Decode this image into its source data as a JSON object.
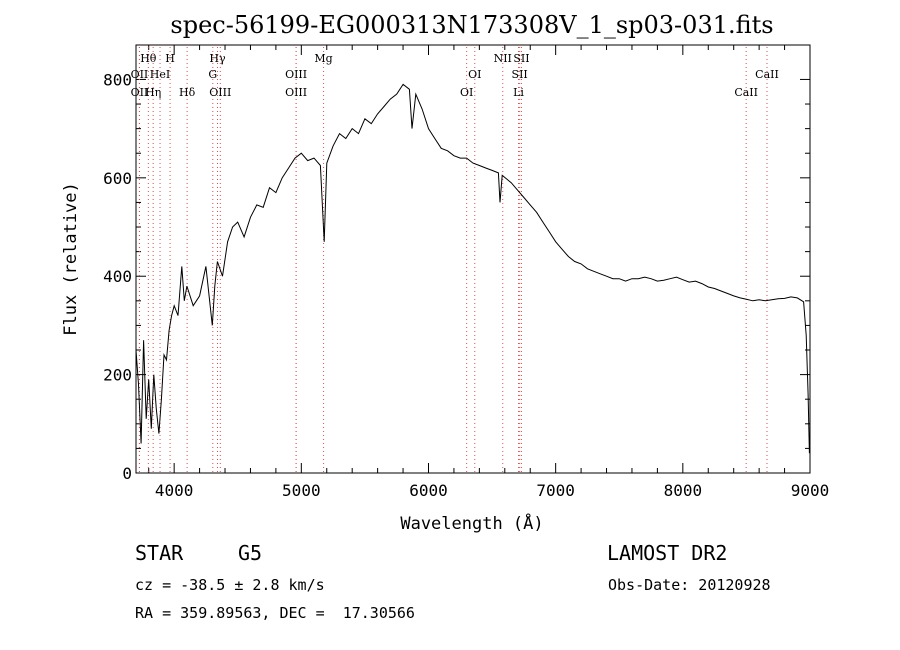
{
  "chart_data": {
    "type": "line",
    "title": "spec-56199-EG000313N173308V_1_sp03-031.fits",
    "xlabel": "Wavelength (Å)",
    "ylabel": "Flux (relative)",
    "xlim": [
      3700,
      9000
    ],
    "ylim": [
      0,
      870
    ],
    "grid": false,
    "x_ticks": [
      4000,
      5000,
      6000,
      7000,
      8000,
      9000
    ],
    "y_ticks": [
      0,
      200,
      400,
      600,
      800
    ],
    "series": [
      {
        "color": "#000000",
        "points": [
          [
            3700,
            250
          ],
          [
            3720,
            180
          ],
          [
            3740,
            60
          ],
          [
            3760,
            270
          ],
          [
            3780,
            110
          ],
          [
            3800,
            190
          ],
          [
            3820,
            90
          ],
          [
            3840,
            200
          ],
          [
            3860,
            130
          ],
          [
            3880,
            80
          ],
          [
            3900,
            150
          ],
          [
            3920,
            240
          ],
          [
            3940,
            230
          ],
          [
            3960,
            290
          ],
          [
            3980,
            320
          ],
          [
            4000,
            340
          ],
          [
            4030,
            320
          ],
          [
            4060,
            420
          ],
          [
            4080,
            350
          ],
          [
            4100,
            380
          ],
          [
            4150,
            340
          ],
          [
            4200,
            360
          ],
          [
            4250,
            420
          ],
          [
            4300,
            300
          ],
          [
            4320,
            380
          ],
          [
            4340,
            430
          ],
          [
            4380,
            400
          ],
          [
            4420,
            470
          ],
          [
            4460,
            500
          ],
          [
            4500,
            510
          ],
          [
            4550,
            480
          ],
          [
            4600,
            520
          ],
          [
            4650,
            545
          ],
          [
            4700,
            540
          ],
          [
            4750,
            580
          ],
          [
            4800,
            570
          ],
          [
            4850,
            600
          ],
          [
            4900,
            620
          ],
          [
            4950,
            640
          ],
          [
            5000,
            650
          ],
          [
            5050,
            635
          ],
          [
            5100,
            640
          ],
          [
            5150,
            625
          ],
          [
            5180,
            470
          ],
          [
            5200,
            630
          ],
          [
            5250,
            665
          ],
          [
            5300,
            690
          ],
          [
            5350,
            680
          ],
          [
            5400,
            700
          ],
          [
            5450,
            690
          ],
          [
            5500,
            720
          ],
          [
            5550,
            710
          ],
          [
            5600,
            730
          ],
          [
            5650,
            745
          ],
          [
            5700,
            760
          ],
          [
            5750,
            770
          ],
          [
            5800,
            790
          ],
          [
            5850,
            780
          ],
          [
            5870,
            700
          ],
          [
            5900,
            770
          ],
          [
            5950,
            740
          ],
          [
            6000,
            700
          ],
          [
            6050,
            680
          ],
          [
            6100,
            660
          ],
          [
            6150,
            655
          ],
          [
            6200,
            645
          ],
          [
            6250,
            640
          ],
          [
            6300,
            640
          ],
          [
            6350,
            630
          ],
          [
            6400,
            625
          ],
          [
            6450,
            620
          ],
          [
            6500,
            615
          ],
          [
            6550,
            610
          ],
          [
            6562,
            550
          ],
          [
            6580,
            605
          ],
          [
            6650,
            590
          ],
          [
            6700,
            575
          ],
          [
            6750,
            560
          ],
          [
            6800,
            545
          ],
          [
            6850,
            530
          ],
          [
            6900,
            510
          ],
          [
            6950,
            490
          ],
          [
            7000,
            470
          ],
          [
            7050,
            455
          ],
          [
            7100,
            440
          ],
          [
            7150,
            430
          ],
          [
            7200,
            425
          ],
          [
            7250,
            415
          ],
          [
            7300,
            410
          ],
          [
            7350,
            405
          ],
          [
            7400,
            400
          ],
          [
            7450,
            395
          ],
          [
            7500,
            395
          ],
          [
            7550,
            390
          ],
          [
            7600,
            395
          ],
          [
            7650,
            395
          ],
          [
            7700,
            398
          ],
          [
            7750,
            395
          ],
          [
            7800,
            390
          ],
          [
            7850,
            392
          ],
          [
            7900,
            395
          ],
          [
            7950,
            398
          ],
          [
            8000,
            393
          ],
          [
            8050,
            388
          ],
          [
            8100,
            390
          ],
          [
            8150,
            385
          ],
          [
            8200,
            378
          ],
          [
            8250,
            375
          ],
          [
            8300,
            370
          ],
          [
            8350,
            365
          ],
          [
            8400,
            360
          ],
          [
            8450,
            356
          ],
          [
            8500,
            353
          ],
          [
            8550,
            350
          ],
          [
            8600,
            352
          ],
          [
            8650,
            350
          ],
          [
            8700,
            352
          ],
          [
            8750,
            354
          ],
          [
            8800,
            355
          ],
          [
            8850,
            358
          ],
          [
            8900,
            356
          ],
          [
            8950,
            348
          ],
          [
            8970,
            280
          ],
          [
            8985,
            160
          ],
          [
            8995,
            40
          ]
        ]
      }
    ],
    "lines_bottom": [
      {
        "label": "OII",
        "x": 3727
      },
      {
        "label": "Hη",
        "x": 3835
      },
      {
        "label": "Hδ",
        "x": 4102
      },
      {
        "label": "OIII",
        "x": 4363
      },
      {
        "label": "OIII",
        "x": 4959
      },
      {
        "label": "OI",
        "x": 6300
      },
      {
        "label": "Li",
        "x": 6708
      },
      {
        "label": "CaII",
        "x": 8498
      }
    ],
    "lines_middle": [
      {
        "label": "OII",
        "x": 3727
      },
      {
        "label": "HeI",
        "x": 3889
      },
      {
        "label": "G",
        "x": 4304
      },
      {
        "label": "OIII",
        "x": 4959
      },
      {
        "label": "OI",
        "x": 6364
      },
      {
        "label": "SII",
        "x": 6717
      },
      {
        "label": "CaII",
        "x": 8662
      }
    ],
    "lines_top": [
      {
        "label": "Hθ",
        "x": 3797
      },
      {
        "label": "H",
        "x": 3968
      },
      {
        "label": "Hγ",
        "x": 4341
      },
      {
        "label": "Mg",
        "x": 5175
      },
      {
        "label": "NII",
        "x": 6584
      },
      {
        "label": "SII",
        "x": 6731
      }
    ],
    "line_marker_color": "#e05050"
  },
  "info": {
    "class": "STAR",
    "subclass": "G5",
    "survey": "LAMOST DR2",
    "redshift": "cz = -38.5 ± 2.8 km/s",
    "obs_date": "Obs-Date: 20120928",
    "coords": "RA = 359.89563, DEC =  17.30566"
  }
}
